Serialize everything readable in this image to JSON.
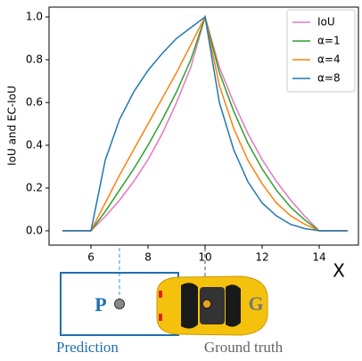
{
  "chart_data": {
    "type": "line",
    "ylabel": "IoU and EC-IoU",
    "xlabel": "X",
    "x": [
      5,
      6,
      6.5,
      7,
      7.5,
      8,
      8.5,
      9,
      9.5,
      10,
      10.5,
      11,
      11.5,
      12,
      12.5,
      13,
      13.5,
      14,
      15
    ],
    "series": [
      {
        "name": "IoU",
        "color": "#e377c2",
        "values": [
          0,
          0,
          0.067,
          0.143,
          0.231,
          0.333,
          0.455,
          0.6,
          0.765,
          1,
          0.765,
          0.6,
          0.455,
          0.333,
          0.231,
          0.143,
          0.067,
          0,
          0
        ]
      },
      {
        "name": "α=1",
        "color": "#2ca02c",
        "values": [
          0,
          0,
          0.09,
          0.19,
          0.29,
          0.4,
          0.52,
          0.65,
          0.8,
          1,
          0.74,
          0.56,
          0.41,
          0.29,
          0.19,
          0.11,
          0.05,
          0,
          0
        ]
      },
      {
        "name": "α=4",
        "color": "#ff7f0e",
        "values": [
          0,
          0,
          0.13,
          0.26,
          0.38,
          0.5,
          0.62,
          0.74,
          0.87,
          1,
          0.68,
          0.48,
          0.33,
          0.22,
          0.13,
          0.07,
          0.03,
          0,
          0
        ]
      },
      {
        "name": "α=8",
        "color": "#1f77b4",
        "values": [
          0,
          0,
          0.33,
          0.52,
          0.65,
          0.75,
          0.83,
          0.9,
          0.95,
          1,
          0.6,
          0.38,
          0.23,
          0.13,
          0.07,
          0.03,
          0.01,
          0,
          0
        ]
      }
    ],
    "xlim": [
      4.53,
      15.375
    ],
    "ylim": [
      -0.067,
      1.046
    ],
    "xticks": [
      6,
      8,
      10,
      12,
      14
    ],
    "yticks": [
      {
        "value": 0,
        "label": "0.0"
      },
      0.2,
      0.4,
      0.6,
      0.8,
      {
        "value": 1,
        "label": "1.0"
      }
    ],
    "legend": "upper right"
  },
  "illustration": {
    "pred_letter": "P",
    "gt_letter": "G",
    "pred_label": "Prediction",
    "gt_label": "Ground truth"
  }
}
